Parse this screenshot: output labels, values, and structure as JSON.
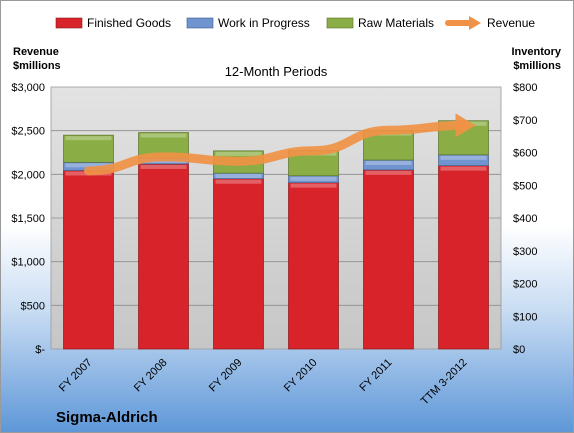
{
  "chart_data": {
    "type": "bar",
    "title": "12-Month Periods",
    "categories": [
      "FY 2007",
      "FY 2008",
      "FY 2009",
      "FY 2010",
      "FY 2011",
      "TTM 3-2012"
    ],
    "left_axis": {
      "label_line1": "Revenue",
      "label_line2": "$millions",
      "ylim": [
        0,
        3000
      ],
      "ticks": [
        {
          "value": 0,
          "label": "$-"
        },
        {
          "value": 500,
          "label": "$500"
        },
        {
          "value": 1000,
          "label": "$1,000"
        },
        {
          "value": 1500,
          "label": "$1,500"
        },
        {
          "value": 2000,
          "label": "$2,000"
        },
        {
          "value": 2500,
          "label": "$2,500"
        },
        {
          "value": 3000,
          "label": "$3,000"
        }
      ]
    },
    "right_axis": {
      "label_line1": "Inventory",
      "label_line2": "$millions",
      "ylim": [
        0,
        800
      ],
      "ticks": [
        {
          "value": 0,
          "label": "$0"
        },
        {
          "value": 100,
          "label": "$100"
        },
        {
          "value": 200,
          "label": "$200"
        },
        {
          "value": 300,
          "label": "$300"
        },
        {
          "value": 400,
          "label": "$400"
        },
        {
          "value": 500,
          "label": "$500"
        },
        {
          "value": 600,
          "label": "$600"
        },
        {
          "value": 700,
          "label": "$700"
        },
        {
          "value": 800,
          "label": "$800"
        }
      ]
    },
    "series": [
      {
        "name": "Finished Goods",
        "axis": "right",
        "kind": "stacked-bar",
        "color": "#d9232a",
        "values": [
          545,
          565,
          520,
          508,
          547,
          560
        ]
      },
      {
        "name": "Work in Progress",
        "axis": "right",
        "kind": "stacked-bar",
        "color": "#7094cf",
        "values": [
          25,
          18,
          17,
          21,
          30,
          33
        ]
      },
      {
        "name": "Raw Materials",
        "axis": "right",
        "kind": "stacked-bar",
        "color": "#8aae45",
        "values": [
          83,
          78,
          68,
          77,
          90,
          104
        ]
      },
      {
        "name": "Revenue",
        "axis": "left",
        "kind": "line",
        "color": "#f09145",
        "values": [
          2040,
          2200,
          2150,
          2270,
          2505,
          2560
        ]
      }
    ],
    "grid": true,
    "legend": "top"
  },
  "company_name": "Sigma-Aldrich"
}
